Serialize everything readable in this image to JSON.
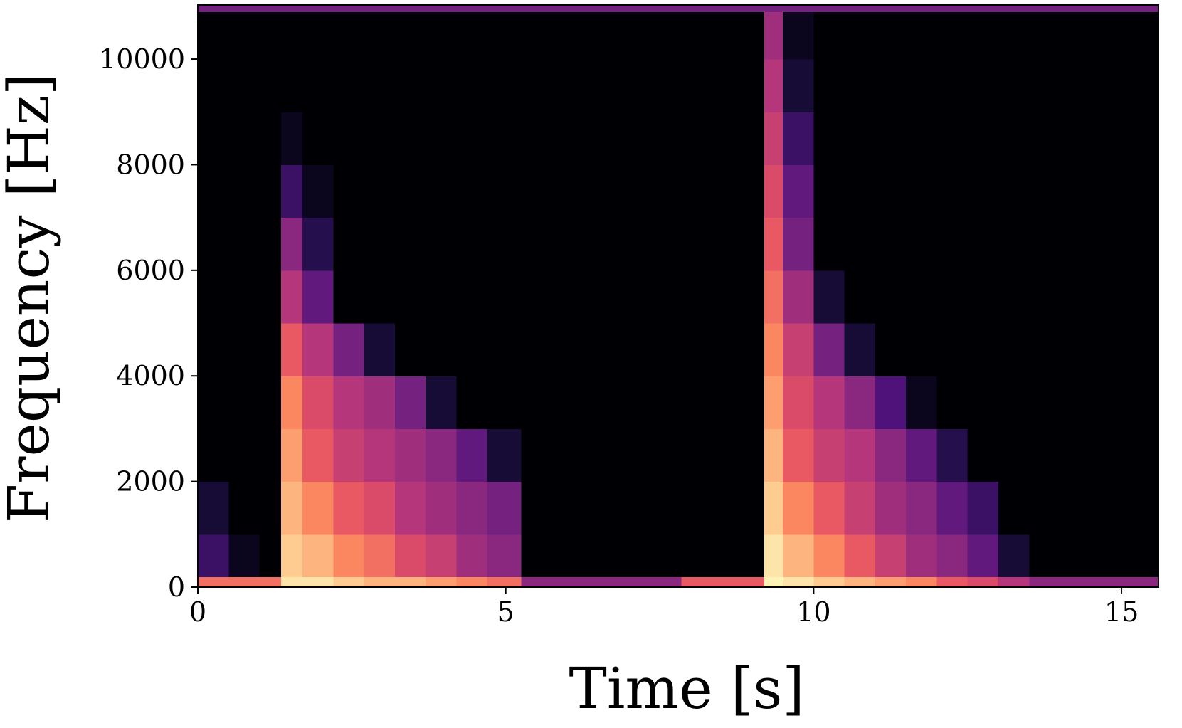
{
  "chart_data": {
    "type": "spectrogram",
    "x_label": "Time [s]",
    "y_label": "Frequency [Hz]",
    "colormap": "magma",
    "xlim": [
      0,
      15.6
    ],
    "ylim": [
      0,
      11025
    ],
    "xticks": [
      0,
      5,
      10,
      15
    ],
    "yticks": [
      0,
      2000,
      4000,
      6000,
      8000,
      10000
    ],
    "xbins": [
      0,
      0.5,
      1,
      1.35,
      1.7,
      2.2,
      2.7,
      3.2,
      3.7,
      4.2,
      4.7,
      5.25,
      6,
      7,
      7.85,
      9.2,
      9.5,
      10,
      10.5,
      11,
      11.5,
      12,
      12.5,
      13,
      13.5,
      14,
      15.6
    ],
    "ybins": [
      0,
      200,
      1000,
      2000,
      3000,
      4000,
      5000,
      6000,
      7000,
      8000,
      9000,
      10000,
      10900,
      11025
    ],
    "z": [
      [
        0.7,
        0.7,
        0.7,
        0.95,
        0.95,
        0.9,
        0.85,
        0.85,
        0.8,
        0.75,
        0.7,
        0.4,
        0.4,
        0.4,
        0.65,
        0.98,
        0.95,
        0.9,
        0.85,
        0.8,
        0.75,
        0.65,
        0.6,
        0.5,
        0.4,
        0.4
      ],
      [
        0.2,
        0.05,
        0,
        0.9,
        0.85,
        0.75,
        0.7,
        0.6,
        0.55,
        0.45,
        0.4,
        0,
        0,
        0,
        0,
        0.95,
        0.85,
        0.75,
        0.65,
        0.55,
        0.45,
        0.4,
        0.3,
        0.1,
        0,
        0
      ],
      [
        0.1,
        0,
        0,
        0.85,
        0.75,
        0.65,
        0.6,
        0.5,
        0.45,
        0.4,
        0.35,
        0,
        0,
        0,
        0,
        0.9,
        0.75,
        0.65,
        0.55,
        0.45,
        0.4,
        0.3,
        0.2,
        0,
        0,
        0
      ],
      [
        0,
        0,
        0,
        0.8,
        0.65,
        0.55,
        0.5,
        0.45,
        0.4,
        0.3,
        0.1,
        0,
        0,
        0,
        0,
        0.85,
        0.65,
        0.55,
        0.5,
        0.4,
        0.3,
        0.15,
        0,
        0,
        0,
        0
      ],
      [
        0,
        0,
        0,
        0.75,
        0.6,
        0.5,
        0.45,
        0.35,
        0.1,
        0,
        0,
        0,
        0,
        0,
        0,
        0.8,
        0.6,
        0.5,
        0.4,
        0.25,
        0.05,
        0,
        0,
        0,
        0,
        0
      ],
      [
        0,
        0,
        0,
        0.65,
        0.5,
        0.35,
        0.1,
        0,
        0,
        0,
        0,
        0,
        0,
        0,
        0,
        0.75,
        0.55,
        0.35,
        0.1,
        0,
        0,
        0,
        0,
        0,
        0,
        0
      ],
      [
        0,
        0,
        0,
        0.5,
        0.3,
        0,
        0,
        0,
        0,
        0,
        0,
        0,
        0,
        0,
        0,
        0.7,
        0.45,
        0.1,
        0,
        0,
        0,
        0,
        0,
        0,
        0,
        0
      ],
      [
        0,
        0,
        0,
        0.4,
        0.15,
        0,
        0,
        0,
        0,
        0,
        0,
        0,
        0,
        0,
        0,
        0.65,
        0.35,
        0,
        0,
        0,
        0,
        0,
        0,
        0,
        0,
        0
      ],
      [
        0,
        0,
        0,
        0.2,
        0.05,
        0,
        0,
        0,
        0,
        0,
        0,
        0,
        0,
        0,
        0,
        0.6,
        0.3,
        0,
        0,
        0,
        0,
        0,
        0,
        0,
        0,
        0
      ],
      [
        0,
        0,
        0,
        0.05,
        0,
        0,
        0,
        0,
        0,
        0,
        0,
        0,
        0,
        0,
        0,
        0.55,
        0.2,
        0,
        0,
        0,
        0,
        0,
        0,
        0,
        0,
        0
      ],
      [
        0,
        0,
        0,
        0,
        0,
        0,
        0,
        0,
        0,
        0,
        0,
        0,
        0,
        0,
        0,
        0.5,
        0.1,
        0,
        0,
        0,
        0,
        0,
        0,
        0,
        0,
        0
      ],
      [
        0,
        0,
        0,
        0,
        0,
        0,
        0,
        0,
        0,
        0,
        0,
        0,
        0,
        0,
        0,
        0.45,
        0.05,
        0,
        0,
        0,
        0,
        0,
        0,
        0,
        0,
        0
      ],
      [
        0.35,
        0.35,
        0.35,
        0.35,
        0.35,
        0.35,
        0.35,
        0.35,
        0.35,
        0.35,
        0.35,
        0.35,
        0.35,
        0.35,
        0.35,
        0.35,
        0.35,
        0.35,
        0.35,
        0.35,
        0.35,
        0.35,
        0.35,
        0.35,
        0.35,
        0.35
      ]
    ]
  }
}
